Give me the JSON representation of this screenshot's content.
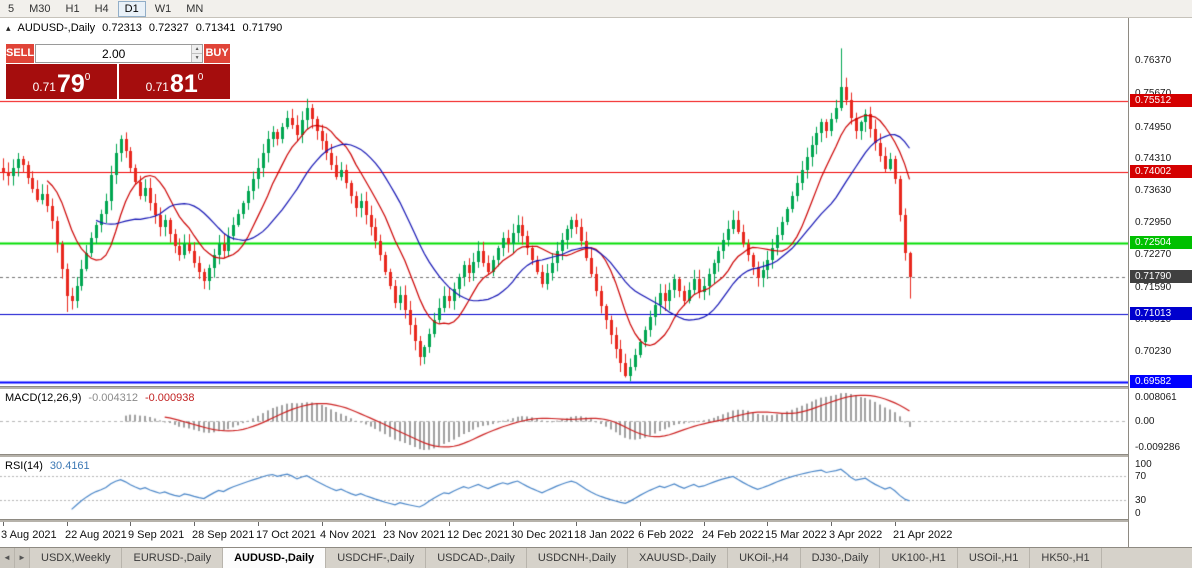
{
  "timeframe_bar": {
    "items": [
      {
        "label": "5"
      },
      {
        "label": "M30"
      },
      {
        "label": "H1"
      },
      {
        "label": "H4"
      },
      {
        "label": "D1",
        "active": true
      },
      {
        "label": "W1"
      },
      {
        "label": "MN"
      }
    ]
  },
  "chart_header": {
    "marker": "▴",
    "symbol": "AUDUSD-,Daily",
    "open": "0.72313",
    "high": "0.72327",
    "low": "0.71341",
    "close": "0.71790"
  },
  "trade_panel": {
    "sell_label": "SELL",
    "buy_label": "BUY",
    "volume": "2.00",
    "sell_price": {
      "base": "0.71",
      "big": "79",
      "sup": "0"
    },
    "buy_price": {
      "base": "0.71",
      "big": "81",
      "sup": "0"
    }
  },
  "price_axis": {
    "ticks": [
      "0.76370",
      "0.75670",
      "0.74950",
      "0.74310",
      "0.73630",
      "0.72950",
      "0.72270",
      "0.71590",
      "0.70910",
      "0.70230"
    ],
    "badges": [
      {
        "label": "0.75512",
        "value": 0.75512,
        "color": "#d40000"
      },
      {
        "label": "0.74002",
        "value": 0.74002,
        "color": "#d40000"
      },
      {
        "label": "0.72504",
        "value": 0.72504,
        "color": "#00c000"
      },
      {
        "label": "0.71790",
        "value": 0.7179,
        "color": "#404040"
      },
      {
        "label": "0.71013",
        "value": 0.71013,
        "color": "#0000cd"
      },
      {
        "label": "0.69582",
        "value": 0.69582,
        "color": "#0000ff"
      }
    ]
  },
  "macd_panel": {
    "title": "MACD(12,26,9)",
    "value_main": "-0.004312",
    "value_signal": "-0.000938",
    "axis": [
      {
        "label": "0.008061",
        "value": 0.008061
      },
      {
        "label": "0.00",
        "value": 0
      },
      {
        "label": "-0.009286",
        "value": -0.009286
      }
    ]
  },
  "rsi_panel": {
    "title": "RSI(14)",
    "value": "30.4161",
    "axis": [
      {
        "label": "100",
        "value": 100
      },
      {
        "label": "70",
        "value": 70
      },
      {
        "label": "30",
        "value": 30
      },
      {
        "label": "0",
        "value": 0
      }
    ],
    "levels": [
      70,
      30
    ]
  },
  "tabs": {
    "scroll_left": "◄",
    "scroll_right": "►",
    "items": [
      {
        "label": "USDX,Weekly"
      },
      {
        "label": "EURUSD-,Daily"
      },
      {
        "label": "AUDUSD-,Daily",
        "active": true
      },
      {
        "label": "USDCHF-,Daily"
      },
      {
        "label": "USDCAD-,Daily"
      },
      {
        "label": "USDCNH-,Daily"
      },
      {
        "label": "XAUUSD-,Daily"
      },
      {
        "label": "UKOil-,H4"
      },
      {
        "label": "DJ30-,Daily"
      },
      {
        "label": "UK100-,H1"
      },
      {
        "label": "USOil-,H1"
      },
      {
        "label": "HK50-,H1"
      }
    ]
  },
  "chart_data": {
    "type": "candlestick",
    "symbol": "AUDUSD",
    "timeframe": "Daily",
    "title": "AUDUSD-,Daily",
    "ohlc_current": {
      "open": 0.72313,
      "high": 0.72327,
      "low": 0.71341,
      "close": 0.7179
    },
    "ylim": [
      0.695,
      0.7725
    ],
    "first_open": 0.741,
    "candle_spacing": 4.9,
    "up_color": "#00a651",
    "down_color": "#e8281e",
    "ma_fast_period": 10,
    "ma_fast_color": "#cc0000",
    "ma_slow_period": 20,
    "ma_slow_color": "#1414b4",
    "current_price": 0.7179,
    "hlines": [
      {
        "price": 0.75512,
        "color": "#f00000",
        "width": 1
      },
      {
        "price": 0.74002,
        "color": "#f00000",
        "width": 1
      },
      {
        "price": 0.72504,
        "color": "#00dd00",
        "width": 2
      },
      {
        "price": 0.71013,
        "color": "#0000cd",
        "width": 1
      },
      {
        "price": 0.69582,
        "color": "#0000ff",
        "width": 2
      }
    ],
    "closes": [
      0.7401,
      0.7392,
      0.741,
      0.7428,
      0.7415,
      0.7388,
      0.7365,
      0.7342,
      0.7355,
      0.733,
      0.7298,
      0.725,
      0.7196,
      0.714,
      0.7128,
      0.716,
      0.7196,
      0.723,
      0.7262,
      0.729,
      0.7312,
      0.734,
      0.7395,
      0.744,
      0.747,
      0.7445,
      0.741,
      0.738,
      0.735,
      0.7368,
      0.7335,
      0.731,
      0.7285,
      0.73,
      0.727,
      0.7245,
      0.7225,
      0.725,
      0.7235,
      0.721,
      0.719,
      0.7172,
      0.7198,
      0.7225,
      0.725,
      0.7235,
      0.7265,
      0.729,
      0.7312,
      0.7335,
      0.736,
      0.7385,
      0.741,
      0.744,
      0.747,
      0.7485,
      0.747,
      0.7495,
      0.7515,
      0.75,
      0.7478,
      0.751,
      0.7535,
      0.7512,
      0.7488,
      0.7465,
      0.744,
      0.7415,
      0.739,
      0.7405,
      0.7378,
      0.735,
      0.7325,
      0.734,
      0.731,
      0.7285,
      0.7255,
      0.7225,
      0.719,
      0.716,
      0.7125,
      0.7142,
      0.711,
      0.7078,
      0.7045,
      0.7012,
      0.7032,
      0.706,
      0.7088,
      0.7115,
      0.714,
      0.7128,
      0.7155,
      0.718,
      0.7205,
      0.7188,
      0.7212,
      0.7235,
      0.721,
      0.719,
      0.7215,
      0.724,
      0.7262,
      0.725,
      0.7272,
      0.729,
      0.7265,
      0.724,
      0.7215,
      0.719,
      0.7165,
      0.7188,
      0.721,
      0.7235,
      0.7258,
      0.728,
      0.73,
      0.7285,
      0.7255,
      0.722,
      0.7185,
      0.715,
      0.7118,
      0.7088,
      0.7058,
      0.7028,
      0.6998,
      0.6972,
      0.699,
      0.7015,
      0.7042,
      0.7068,
      0.7095,
      0.712,
      0.7145,
      0.7128,
      0.7152,
      0.7175,
      0.715,
      0.7128,
      0.7152,
      0.7175,
      0.7148,
      0.716,
      0.7185,
      0.721,
      0.7235,
      0.7258,
      0.728,
      0.73,
      0.7275,
      0.725,
      0.7225,
      0.72,
      0.7178,
      0.7195,
      0.7215,
      0.724,
      0.7268,
      0.7295,
      0.7322,
      0.735,
      0.7378,
      0.7405,
      0.7432,
      0.7458,
      0.7482,
      0.7505,
      0.7488,
      0.7512,
      0.7535,
      0.758,
      0.7552,
      0.7515,
      0.7488,
      0.7505,
      0.7522,
      0.7492,
      0.7462,
      0.7435,
      0.7408,
      0.7428,
      0.7385,
      0.731,
      0.7231,
      0.7179
    ],
    "wick_overrides": {
      "13": {
        "low": 0.7106
      },
      "24": {
        "high": 0.7478
      },
      "62": {
        "high": 0.7555
      },
      "85": {
        "low": 0.6993
      },
      "127": {
        "low": 0.6968
      },
      "171": {
        "high": 0.7661
      },
      "185": {
        "high": 0.72327,
        "low": 0.71341
      }
    },
    "macd": {
      "fast": 12,
      "slow": 26,
      "signal": 9,
      "hist_color": "#a0a0a0",
      "signal_color": "#cc2222"
    },
    "rsi_period": 14,
    "rsi_color": "#4a86c8",
    "x_labels": [
      "3 Aug 2021",
      "22 Aug 2021",
      "9 Sep 2021",
      "28 Sep 2021",
      "17 Oct 2021",
      "4 Nov 2021",
      "23 Nov 2021",
      "12 Dec 2021",
      "30 Dec 2021",
      "18 Jan 2022",
      "6 Feb 2022",
      "24 Feb 2022",
      "15 Mar 2022",
      "3 Apr 2022",
      "21 Apr 2022"
    ],
    "candles_per_label": 13
  }
}
